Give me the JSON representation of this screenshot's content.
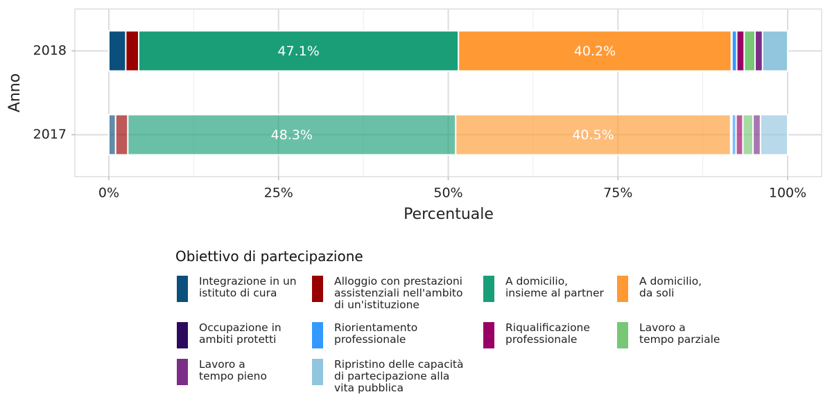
{
  "chart_data": {
    "type": "stacked_bar_horizontal",
    "x_label": "Percentuale",
    "y_label": "Anno",
    "categories": [
      "2018",
      "2017"
    ],
    "category_opacity": [
      1,
      0.65
    ],
    "xlim": [
      -5,
      105
    ],
    "xticks": [
      {
        "value": 0,
        "label": "0%"
      },
      {
        "value": 25,
        "label": "25%"
      },
      {
        "value": 50,
        "label": "50%"
      },
      {
        "value": 75,
        "label": "75%"
      },
      {
        "value": 100,
        "label": "100%"
      }
    ],
    "grid": true,
    "legend_title": "Obiettivo di partecipazione",
    "legend_position": "bottom",
    "series": [
      {
        "name": "Integrazione in un\nistituto di cura",
        "color": "#0b4f7c",
        "values": [
          2.5,
          1.0
        ]
      },
      {
        "name": "Alloggio con prestazioni\nassistenziali nell'ambito\ndi un'istituzione",
        "color": "#990000",
        "values": [
          1.9,
          1.8
        ]
      },
      {
        "name": "A domicilio,\ninsieme al partner",
        "color": "#1a9e77",
        "values": [
          47.1,
          48.3
        ],
        "value_labels": [
          "47.1%",
          "48.3%"
        ]
      },
      {
        "name": "A domicilio,\nda soli",
        "color": "#ff9933",
        "values": [
          40.2,
          40.5
        ],
        "value_labels": [
          "40.2%",
          "40.5%"
        ]
      },
      {
        "name": "Occupazione in\nambiti protetti",
        "color": "#2d0a5e",
        "values": [
          0.1,
          0.2
        ]
      },
      {
        "name": "Riorientamento\nprofessionale",
        "color": "#3399ff",
        "values": [
          0.7,
          0.6
        ]
      },
      {
        "name": "Riqualificazione\nprofessionale",
        "color": "#990066",
        "values": [
          1.1,
          1.0
        ]
      },
      {
        "name": "Lavoro a\ntempo parziale",
        "color": "#77c777",
        "values": [
          1.6,
          1.5
        ]
      },
      {
        "name": "Lavoro a\ntempo pieno",
        "color": "#7b2d88",
        "values": [
          1.1,
          1.1
        ]
      },
      {
        "name": "Ripristino delle capacità\ndi partecipazione alla\nvita pubblica",
        "color": "#92c5de",
        "values": [
          3.7,
          4.0
        ]
      }
    ]
  }
}
